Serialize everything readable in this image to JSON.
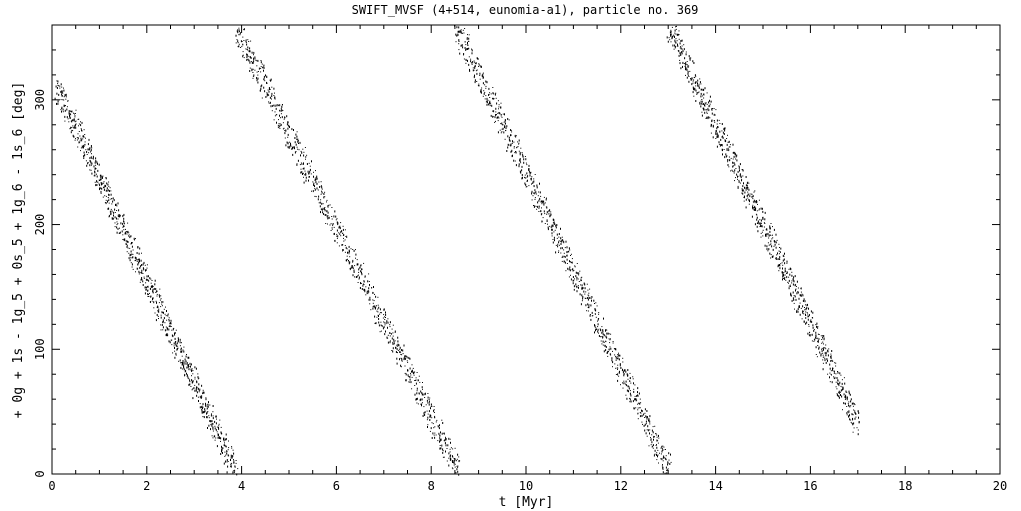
{
  "chart_data": {
    "type": "scatter",
    "title": "SWIFT_MVSF (4+514, eunomia-a1), particle no. 369",
    "xlabel": "t [Myr]",
    "ylabel": "+ 0g + 1s - 1g_5 + 0s_5 + 1g_6 - 1s_6 [deg]",
    "xlim": [
      0,
      20
    ],
    "ylim": [
      0,
      360
    ],
    "x_ticks": [
      0,
      2,
      4,
      6,
      8,
      10,
      12,
      14,
      16,
      18,
      20
    ],
    "x_tick_labels": [
      "0",
      "2",
      "4",
      "6",
      "8",
      "10",
      "12",
      "14",
      "16",
      "18",
      "20"
    ],
    "y_ticks": [
      0,
      100,
      200,
      300
    ],
    "y_tick_labels": [
      "0",
      "100",
      "200",
      "300"
    ],
    "grid": false,
    "marker_color": "#000000",
    "series": [
      {
        "segments": [
          {
            "t_start": 0.1,
            "deg_start": 310,
            "t_end": 3.9,
            "deg_end": 0
          },
          {
            "t_start": 3.85,
            "deg_start": 360,
            "t_end": 8.6,
            "deg_end": 0
          },
          {
            "t_start": 8.5,
            "deg_start": 360,
            "t_end": 13.05,
            "deg_end": 0
          },
          {
            "t_start": 13.0,
            "deg_start": 360,
            "t_end": 17.0,
            "deg_end": 40
          }
        ]
      }
    ]
  }
}
